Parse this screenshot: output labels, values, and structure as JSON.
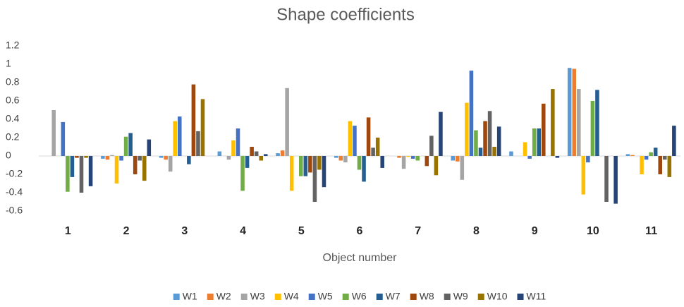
{
  "chart_data": {
    "type": "bar",
    "title": "Shape coefficients",
    "x_label": "Object number",
    "categories": [
      "1",
      "2",
      "3",
      "4",
      "5",
      "6",
      "7",
      "8",
      "9",
      "10",
      "11"
    ],
    "ylim": [
      -0.6,
      1.2
    ],
    "yticks": [
      1.2,
      1,
      0.8,
      0.6,
      0.4,
      0.2,
      0,
      -0.2,
      -0.4,
      -0.6
    ],
    "grid": false,
    "legend": "bottom",
    "series": [
      {
        "name": "W1",
        "color": "#5b9bd5",
        "values": [
          0,
          -0.03,
          -0.02,
          0.05,
          0.03,
          -0.02,
          0,
          -0.05,
          0.05,
          0.96,
          0.02
        ]
      },
      {
        "name": "W2",
        "color": "#ed7d31",
        "values": [
          0,
          -0.04,
          -0.04,
          0,
          0.06,
          -0.05,
          -0.02,
          -0.06,
          0,
          0.95,
          0.01
        ]
      },
      {
        "name": "W3",
        "color": "#a5a5a5",
        "values": [
          0.5,
          0.01,
          -0.17,
          -0.04,
          0.74,
          -0.07,
          -0.14,
          -0.26,
          0,
          0.73,
          0
        ]
      },
      {
        "name": "W4",
        "color": "#ffc000",
        "values": [
          0,
          -0.3,
          0.38,
          0.17,
          -0.38,
          0.38,
          -0.01,
          0.58,
          0.15,
          -0.42,
          -0.2
        ]
      },
      {
        "name": "W5",
        "color": "#4472c4",
        "values": [
          0.37,
          -0.05,
          0.43,
          0.3,
          0,
          0.33,
          -0.03,
          0.93,
          -0.03,
          -0.07,
          -0.04
        ]
      },
      {
        "name": "W6",
        "color": "#70ad47",
        "values": [
          -0.39,
          0.21,
          0,
          -0.38,
          -0.22,
          -0.15,
          -0.05,
          0.28,
          0.3,
          0.6,
          0.04
        ]
      },
      {
        "name": "W7",
        "color": "#255e91",
        "values": [
          -0.23,
          0.25,
          -0.09,
          -0.13,
          -0.22,
          -0.28,
          0,
          0.09,
          0.3,
          0.72,
          0.09
        ]
      },
      {
        "name": "W8",
        "color": "#9e480e",
        "values": [
          -0.02,
          -0.2,
          0.78,
          0.1,
          -0.18,
          0.42,
          -0.11,
          0.38,
          0.57,
          0,
          -0.2
        ]
      },
      {
        "name": "W9",
        "color": "#636363",
        "values": [
          -0.4,
          -0.05,
          0.27,
          0.05,
          -0.5,
          0.09,
          0.22,
          0.49,
          0,
          -0.5,
          -0.04
        ]
      },
      {
        "name": "W10",
        "color": "#997300",
        "values": [
          -0.02,
          -0.27,
          0.62,
          -0.05,
          -0.15,
          0.2,
          -0.21,
          0.1,
          0.73,
          0,
          -0.23
        ]
      },
      {
        "name": "W11",
        "color": "#264478",
        "values": [
          -0.33,
          0.18,
          0,
          0.02,
          -0.34,
          -0.13,
          0.48,
          0.32,
          -0.02,
          -0.52,
          0.33
        ]
      }
    ]
  }
}
